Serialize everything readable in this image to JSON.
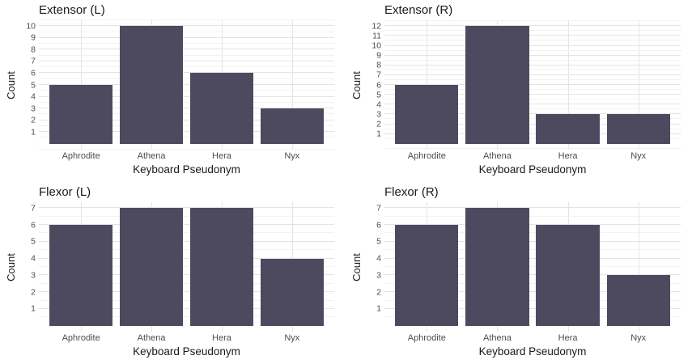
{
  "figure": {
    "background": "#ffffff",
    "bar_color": "#4D4A60",
    "grid_major_color": "#E4E4E4",
    "grid_minor_color": "#F2F2F2",
    "axis_text_color": "#4d4d4d",
    "title_color": "#1a1a1a"
  },
  "chart_data": [
    {
      "type": "bar",
      "title": "Extensor (L)",
      "categories": [
        "Aphrodite",
        "Athena",
        "Hera",
        "Nyx"
      ],
      "values": [
        5,
        10,
        6,
        3
      ],
      "xlabel": "Keyboard Pseudonym",
      "ylabel": "Count",
      "yticks": [
        1,
        2,
        3,
        4,
        5,
        6,
        7,
        8,
        9,
        10
      ],
      "ylim": [
        -0.5,
        10.5
      ],
      "grid": "horizontal major+minor, vertical major at categories",
      "legend": "none"
    },
    {
      "type": "bar",
      "title": "Extensor (R)",
      "categories": [
        "Aphrodite",
        "Athena",
        "Hera",
        "Nyx"
      ],
      "values": [
        6,
        12,
        3,
        3
      ],
      "xlabel": "Keyboard Pseudonym",
      "ylabel": "Count",
      "yticks": [
        1,
        2,
        3,
        4,
        5,
        6,
        7,
        8,
        9,
        10,
        11,
        12
      ],
      "ylim": [
        -0.6,
        12.6
      ],
      "grid": "horizontal major+minor, vertical major at categories",
      "legend": "none"
    },
    {
      "type": "bar",
      "title": "Flexor (L)",
      "categories": [
        "Aphrodite",
        "Athena",
        "Hera",
        "Nyx"
      ],
      "values": [
        6,
        7,
        7,
        4
      ],
      "xlabel": "Keyboard Pseudonym",
      "ylabel": "Count",
      "yticks": [
        1,
        2,
        3,
        4,
        5,
        6,
        7
      ],
      "ylim": [
        -0.35,
        7.35
      ],
      "grid": "horizontal major+minor, vertical major at categories",
      "legend": "none"
    },
    {
      "type": "bar",
      "title": "Flexor (R)",
      "categories": [
        "Aphrodite",
        "Athena",
        "Hera",
        "Nyx"
      ],
      "values": [
        6,
        7,
        6,
        3
      ],
      "xlabel": "Keyboard Pseudonym",
      "ylabel": "Count",
      "yticks": [
        1,
        2,
        3,
        4,
        5,
        6,
        7
      ],
      "ylim": [
        -0.35,
        7.35
      ],
      "grid": "horizontal major+minor, vertical major at categories",
      "legend": "none"
    }
  ]
}
